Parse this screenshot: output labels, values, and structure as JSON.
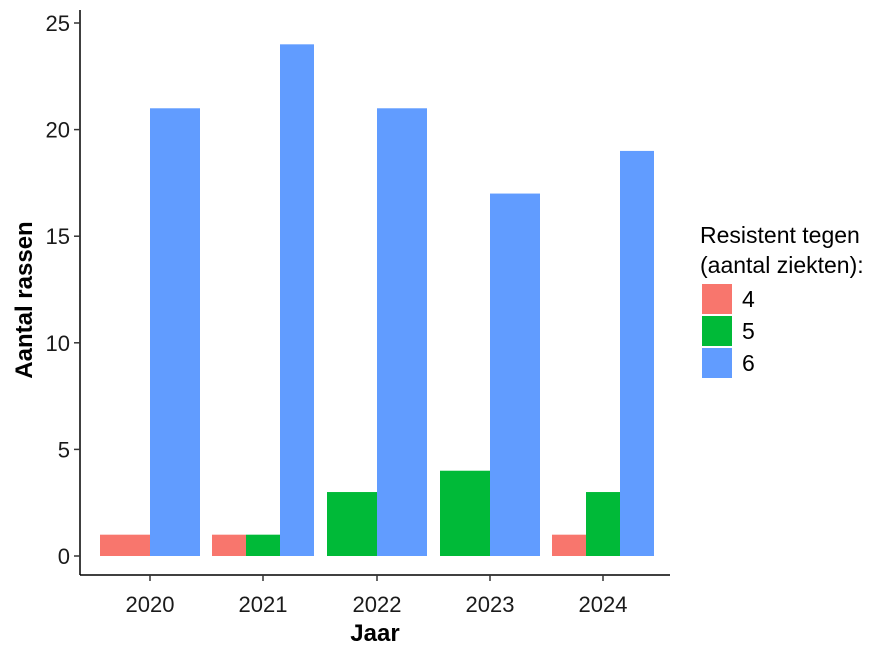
{
  "chart_data": {
    "type": "bar",
    "categories": [
      "2020",
      "2021",
      "2022",
      "2023",
      "2024"
    ],
    "series": [
      {
        "name": "4",
        "color": "#F8766D",
        "values": [
          1,
          1,
          null,
          null,
          1
        ]
      },
      {
        "name": "5",
        "color": "#00BA38",
        "values": [
          null,
          1,
          3,
          4,
          3
        ]
      },
      {
        "name": "6",
        "color": "#619CFF",
        "values": [
          21,
          24,
          21,
          17,
          19
        ]
      }
    ],
    "xlabel": "Jaar",
    "ylabel": "Aantal rassen",
    "ylim": [
      0,
      25
    ],
    "yticks": [
      0,
      5,
      10,
      15,
      20,
      25
    ],
    "grid": false,
    "legend": {
      "title_line1": "Resistent tegen",
      "title_line2": "(aantal ziekten):",
      "placement": "right"
    }
  }
}
